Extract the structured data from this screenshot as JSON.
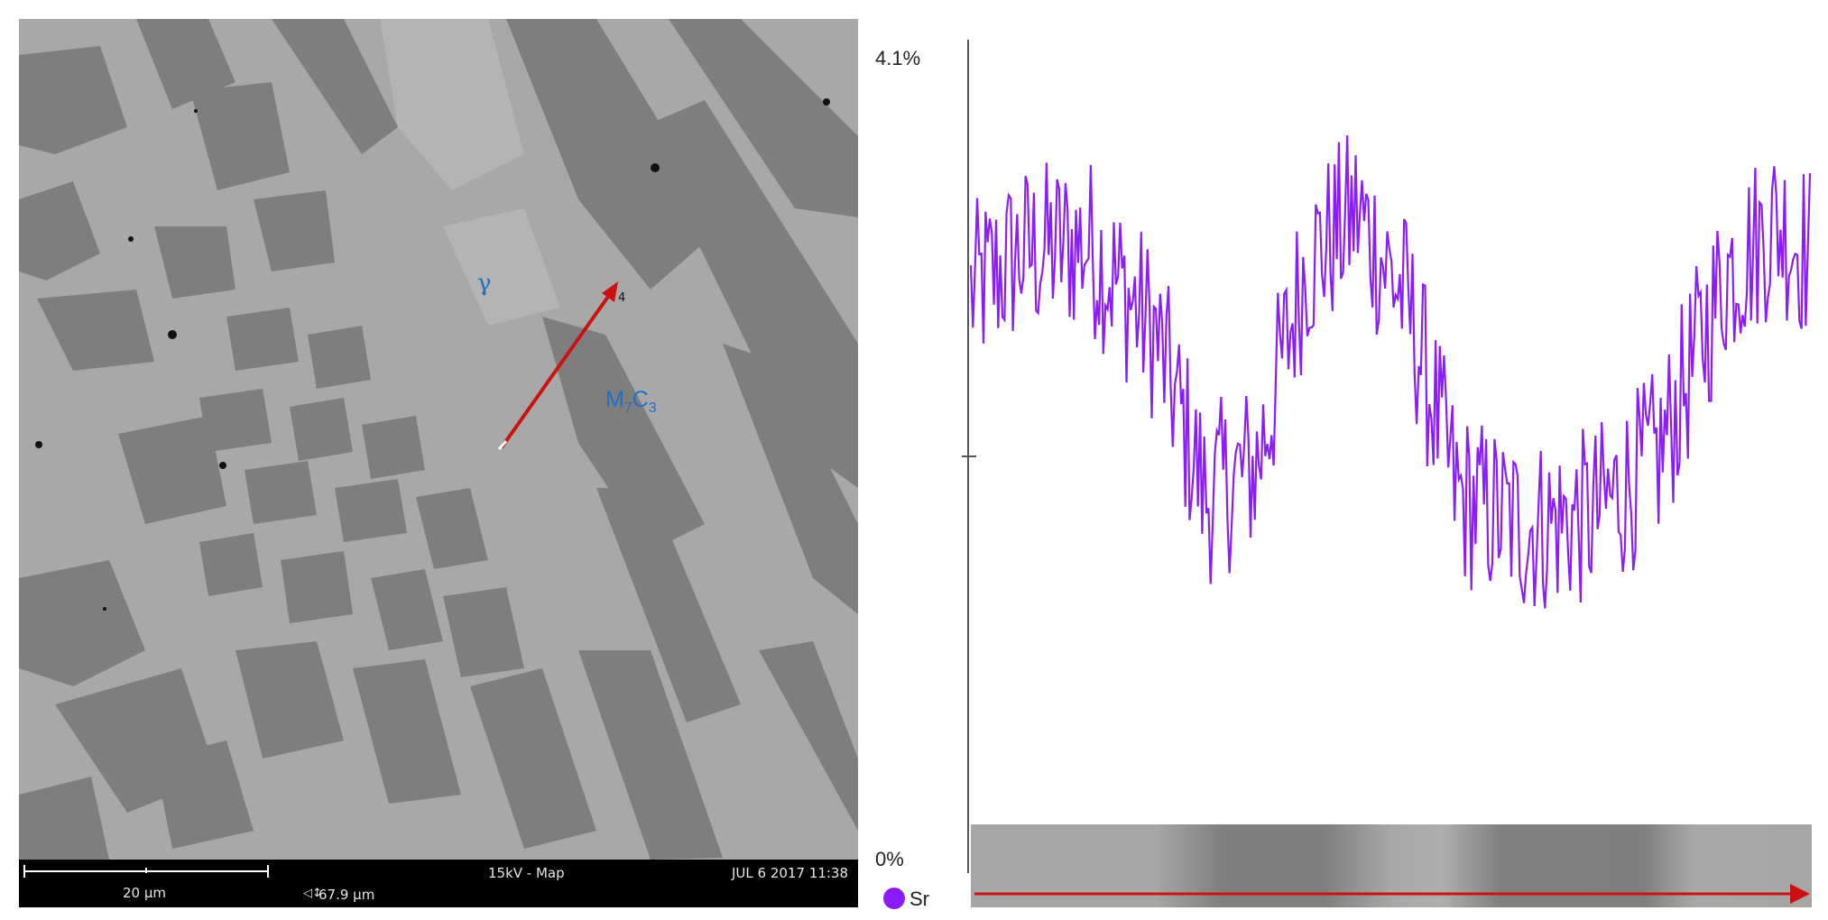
{
  "sem": {
    "phase_gamma": "γ",
    "phase_carbide_m": "M",
    "phase_carbide_sub7": "7",
    "phase_carbide_c": "C",
    "phase_carbide_sub3": "3",
    "scan_point_label": "4",
    "info_bar": {
      "scale_bar_label": "20 µm",
      "field_width_icon": "◁↕",
      "field_width": "67.9 µm",
      "acquisition_mode": "15kV - Map",
      "timestamp": "JUL 6 2017 11:38"
    }
  },
  "colors": {
    "series": "#8b1cff",
    "arrow": "#cc1111",
    "phase_label": "#1f6fc4",
    "matrix_gray": "#a8a8a8",
    "carbide_gray": "#7e7e7e"
  },
  "chart_data": {
    "type": "line",
    "title": "",
    "xlabel": "",
    "ylabel": "",
    "y_max_label": "4.1%",
    "y_min_label": "0%",
    "ylim": [
      0,
      4.1
    ],
    "x_range": [
      0,
      1
    ],
    "grid": false,
    "legend_position": "bottom-left",
    "series": [
      {
        "name": "Sr",
        "color": "#8b1cff",
        "segments_description": "noisy trace",
        "key_points": [
          {
            "x": 0.0,
            "y": 2.85
          },
          {
            "x": 0.06,
            "y": 3.05
          },
          {
            "x": 0.14,
            "y": 3.1
          },
          {
            "x": 0.22,
            "y": 2.65
          },
          {
            "x": 0.28,
            "y": 1.85
          },
          {
            "x": 0.34,
            "y": 2.0
          },
          {
            "x": 0.4,
            "y": 3.0
          },
          {
            "x": 0.46,
            "y": 3.25
          },
          {
            "x": 0.52,
            "y": 2.8
          },
          {
            "x": 0.58,
            "y": 1.85
          },
          {
            "x": 0.66,
            "y": 1.7
          },
          {
            "x": 0.74,
            "y": 1.75
          },
          {
            "x": 0.82,
            "y": 2.05
          },
          {
            "x": 0.9,
            "y": 2.95
          },
          {
            "x": 0.96,
            "y": 3.2
          },
          {
            "x": 1.0,
            "y": 3.05
          }
        ],
        "noise_amplitude": 0.45,
        "sample_count": 400
      }
    ],
    "legend": [
      {
        "label": "Sr",
        "color": "#8b1cff"
      }
    ]
  }
}
